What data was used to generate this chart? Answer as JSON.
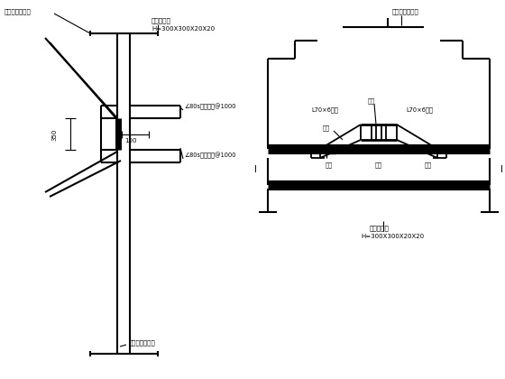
{
  "bg_color": "#ffffff",
  "line_color": "#000000",
  "fig_width": 5.6,
  "fig_height": 4.2,
  "dpi": 100,
  "labels": {
    "top_left": "拉锚杆里侧锚板",
    "top_right": "拉锚杆里侧锚板",
    "ibeam_top": "工字钢腰梁",
    "ibeam_spec": "H=300X300X20X20",
    "channel_upper": "∠80s槽钢拉筋@1000",
    "channel_lower": "∠80s槽钢拉筋@1000",
    "dim_350": "350",
    "dim_100": "100",
    "ibeam_bottom": "工字钢腰梁",
    "ibeam_spec2": "H=300X300X20X20",
    "bottom_label": "拉锚杆里侧锚板",
    "angle_left": "L70×6角钢",
    "angle_right": "L70×6角钢",
    "spot_weld_top": "点焊",
    "spot_weld_mid": "点焊",
    "spot_weld_b1": "点焊",
    "spot_weld_b2": "点焊",
    "spot_weld_b3": "点焊"
  }
}
